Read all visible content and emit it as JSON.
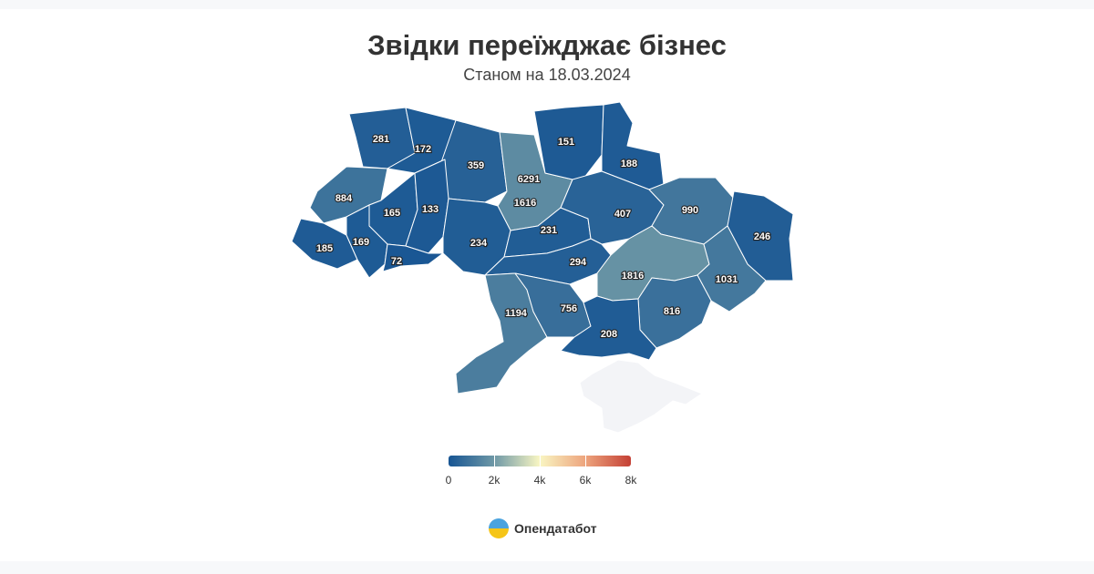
{
  "title": "Звідки переїжджає бізнес",
  "subtitle": "Станом на 18.03.2024",
  "colors": {
    "scale": [
      "#175593",
      "#6e98a6",
      "#f9f6c3",
      "#eda47d",
      "#c44035"
    ],
    "no_data": "#f3f4f7"
  },
  "chart_data": {
    "type": "choropleth",
    "regions": [
      {
        "name": "Volyn",
        "value": 281
      },
      {
        "name": "Rivne",
        "value": 172
      },
      {
        "name": "Zhytomyr",
        "value": 359
      },
      {
        "name": "Kyiv city",
        "value": 6291
      },
      {
        "name": "Kyiv oblast",
        "value": 1616
      },
      {
        "name": "Chernihiv",
        "value": 151
      },
      {
        "name": "Sumy",
        "value": 188
      },
      {
        "name": "Lviv",
        "value": 884
      },
      {
        "name": "Ternopil",
        "value": 165
      },
      {
        "name": "Khmelnytskyi",
        "value": 133
      },
      {
        "name": "Vinnytsia",
        "value": 234
      },
      {
        "name": "Cherkasy",
        "value": 231
      },
      {
        "name": "Poltava",
        "value": 407
      },
      {
        "name": "Kharkiv",
        "value": 990
      },
      {
        "name": "Luhansk",
        "value": 246
      },
      {
        "name": "Zakarpattia",
        "value": 185
      },
      {
        "name": "Ivano-Frankivsk",
        "value": 169
      },
      {
        "name": "Chernivtsi",
        "value": 72
      },
      {
        "name": "Kirovohrad",
        "value": 294
      },
      {
        "name": "Dnipropetrovsk",
        "value": 1816
      },
      {
        "name": "Donetsk",
        "value": 1031
      },
      {
        "name": "Odesa",
        "value": 1194
      },
      {
        "name": "Mykolaiv",
        "value": 756
      },
      {
        "name": "Zaporizhzhia",
        "value": 816
      },
      {
        "name": "Kherson",
        "value": 208
      },
      {
        "name": "Crimea",
        "value": null
      }
    ],
    "legend": {
      "min": 0,
      "max": 8000,
      "ticks": [
        "0",
        "2k",
        "4k",
        "6k",
        "8k"
      ]
    }
  },
  "brand": {
    "name": "Опендатабот"
  }
}
